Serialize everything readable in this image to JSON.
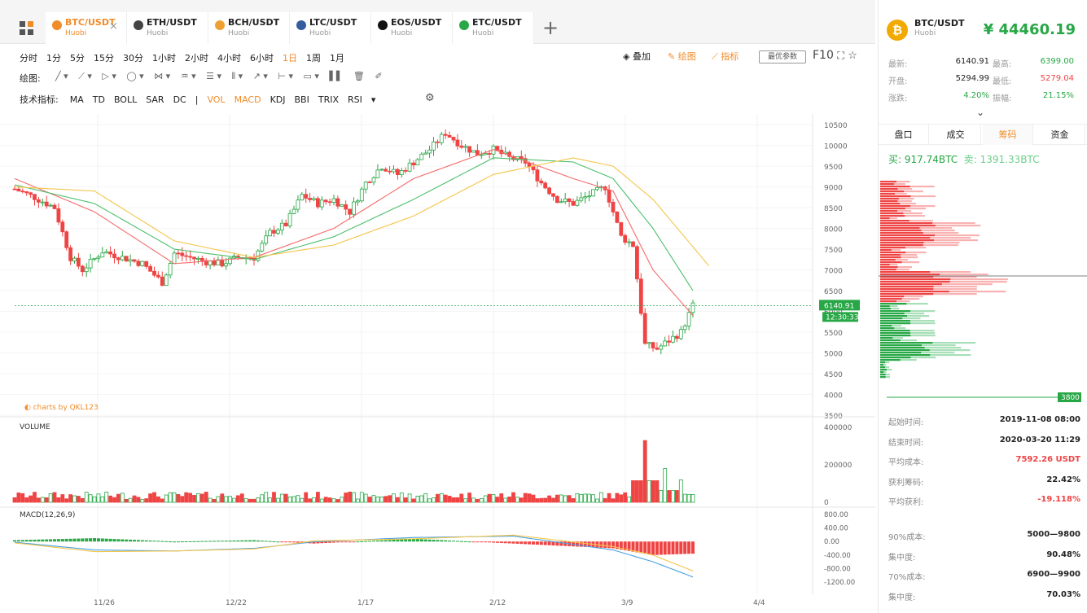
{
  "tabs": [
    {
      "symbol": "BTC/USDT",
      "exchange": "Huobi",
      "active": true,
      "color": "#f08c2a",
      "icon": "bitcoin-icon"
    },
    {
      "symbol": "ETH/USDT",
      "exchange": "Huobi",
      "active": false,
      "color": "#444444",
      "icon": "ethereum-icon"
    },
    {
      "symbol": "BCH/USDT",
      "exchange": "Huobi",
      "active": false,
      "color": "#f0a030",
      "icon": "bitcoin-cash-icon"
    },
    {
      "symbol": "LTC/USDT",
      "exchange": "Huobi",
      "active": false,
      "color": "#345d9d",
      "icon": "litecoin-icon"
    },
    {
      "symbol": "EOS/USDT",
      "exchange": "Huobi",
      "active": false,
      "color": "#111111",
      "icon": "eos-icon"
    },
    {
      "symbol": "ETC/USDT",
      "exchange": "Huobi",
      "active": false,
      "color": "#27a745",
      "icon": "ethereum-classic-icon"
    }
  ],
  "timeframes": [
    "分时",
    "1分",
    "5分",
    "15分",
    "30分",
    "1小时",
    "2小时",
    "4小时",
    "6小时",
    "1日",
    "1周",
    "1月"
  ],
  "active_timeframe": "1日",
  "toolbar_right": {
    "overlay": "叠加",
    "draw": "绘图",
    "indicator": "指标",
    "param": "最优参数",
    "f10": "F10"
  },
  "draw_label": "绘图:",
  "indicator_label": "技术指标:",
  "indicators_main": [
    "MA",
    "TD",
    "BOLL",
    "SAR",
    "DC"
  ],
  "separator": "|",
  "indicators_sub": [
    "VOL",
    "MACD",
    "KDJ",
    "BBI",
    "TRIX",
    "RSI"
  ],
  "indicators_highlighted": [
    "VOL",
    "MACD"
  ],
  "watermark": "charts by QKL123",
  "volume_label": "VOLUME",
  "macd_label": "MACD(12,26,9)",
  "chart_data": {
    "type": "candlestick",
    "price_axis": [
      "10500",
      "10000",
      "9500",
      "9000",
      "8500",
      "8000",
      "7500",
      "7000",
      "6500",
      "6000",
      "5500",
      "5000",
      "4500",
      "4000",
      "3500"
    ],
    "volume_axis": [
      "400000",
      "200000",
      "0"
    ],
    "macd_axis": [
      "800.00",
      "400.00",
      "0.00",
      "-400.00",
      "-800.00",
      "-1200.00"
    ],
    "x_ticks": [
      "11/26",
      "12/22",
      "1/17",
      "2/12",
      "3/9",
      "4/4"
    ],
    "last_price": "6140.91",
    "countdown": "12:30:33",
    "ylim": [
      3500,
      10600
    ],
    "price_key_points": [
      [
        0,
        8950
      ],
      [
        5,
        8750
      ],
      [
        10,
        8500
      ],
      [
        14,
        7300
      ],
      [
        17,
        7000
      ],
      [
        22,
        7450
      ],
      [
        27,
        7300
      ],
      [
        32,
        7150
      ],
      [
        37,
        6700
      ],
      [
        40,
        7400
      ],
      [
        44,
        7300
      ],
      [
        48,
        7200
      ],
      [
        52,
        7150
      ],
      [
        56,
        7300
      ],
      [
        60,
        7300
      ],
      [
        64,
        7900
      ],
      [
        68,
        8100
      ],
      [
        72,
        8800
      ],
      [
        76,
        8600
      ],
      [
        80,
        8700
      ],
      [
        84,
        8400
      ],
      [
        88,
        9100
      ],
      [
        92,
        9500
      ],
      [
        96,
        9300
      ],
      [
        100,
        9600
      ],
      [
        104,
        9900
      ],
      [
        108,
        10300
      ],
      [
        112,
        10000
      ],
      [
        116,
        9800
      ],
      [
        120,
        9900
      ],
      [
        124,
        9700
      ],
      [
        128,
        9600
      ],
      [
        132,
        9100
      ],
      [
        136,
        8700
      ],
      [
        140,
        8600
      ],
      [
        144,
        8800
      ],
      [
        148,
        9000
      ],
      [
        152,
        7800
      ],
      [
        155,
        7600
      ],
      [
        158,
        5200
      ],
      [
        161,
        5100
      ],
      [
        164,
        5300
      ],
      [
        167,
        5500
      ],
      [
        170,
        6140
      ]
    ],
    "ma_lines": [
      {
        "color": "#f46b6b",
        "points": [
          [
            0,
            9200
          ],
          [
            20,
            8400
          ],
          [
            40,
            7150
          ],
          [
            60,
            7300
          ],
          [
            80,
            8000
          ],
          [
            100,
            9200
          ],
          [
            120,
            9900
          ],
          [
            140,
            9200
          ],
          [
            150,
            8900
          ],
          [
            160,
            7000
          ],
          [
            170,
            5900
          ]
        ]
      },
      {
        "color": "#4cbf6c",
        "points": [
          [
            0,
            9050
          ],
          [
            20,
            8600
          ],
          [
            40,
            7500
          ],
          [
            60,
            7250
          ],
          [
            80,
            7800
          ],
          [
            100,
            8700
          ],
          [
            120,
            9700
          ],
          [
            140,
            9600
          ],
          [
            150,
            9200
          ],
          [
            160,
            8000
          ],
          [
            170,
            6500
          ]
        ]
      },
      {
        "color": "#f5c54a",
        "points": [
          [
            0,
            9000
          ],
          [
            20,
            8900
          ],
          [
            40,
            7700
          ],
          [
            60,
            7300
          ],
          [
            80,
            7600
          ],
          [
            100,
            8300
          ],
          [
            120,
            9300
          ],
          [
            140,
            9700
          ],
          [
            150,
            9500
          ],
          [
            160,
            8700
          ],
          [
            174,
            7100
          ]
        ]
      }
    ],
    "volume_spikes": [
      [
        158,
        330000
      ],
      [
        163,
        180000
      ],
      [
        167,
        120000
      ]
    ],
    "macd_dif_points": [
      [
        0,
        -20
      ],
      [
        20,
        -250
      ],
      [
        40,
        -280
      ],
      [
        60,
        -200
      ],
      [
        75,
        -10
      ],
      [
        100,
        120
      ],
      [
        125,
        160
      ],
      [
        150,
        -250
      ],
      [
        160,
        -600
      ],
      [
        170,
        -1050
      ]
    ],
    "macd_dea_points": [
      [
        0,
        -40
      ],
      [
        20,
        -300
      ],
      [
        40,
        -280
      ],
      [
        60,
        -220
      ],
      [
        75,
        20
      ],
      [
        100,
        80
      ],
      [
        125,
        190
      ],
      [
        150,
        -150
      ],
      [
        160,
        -400
      ],
      [
        170,
        -870
      ]
    ]
  },
  "panel": {
    "symbol": "BTC/USDT",
    "exchange": "Huobi",
    "price": "¥ 44460.19",
    "stats": [
      {
        "label": "最新:",
        "value": "6140.91",
        "label2": "最高:",
        "value2": "6399.00",
        "color2": "#27a745"
      },
      {
        "label": "开盘:",
        "value": "5294.99",
        "label2": "最低:",
        "value2": "5279.04",
        "color2": "#ef4444"
      },
      {
        "label": "涨跌:",
        "value": "4.20%",
        "label2": "振幅:",
        "value2": "21.15%",
        "color": "#27a745",
        "color2": "#27a745"
      }
    ],
    "tabs": [
      "盘口",
      "成交",
      "筹码",
      "资金"
    ],
    "active_tab": "筹码",
    "buy": "买: 917.74BTC",
    "sell": "卖: 1391.33BTC",
    "depth_label": "3800",
    "info1": [
      {
        "label": "起始时间:",
        "value": "2019-11-08 08:00",
        "color": "#222222"
      },
      {
        "label": "结束时间:",
        "value": "2020-03-20 11:29",
        "color": "#222222"
      },
      {
        "label": "平均成本:",
        "value": "7592.26 USDT",
        "color": "#ef4444"
      },
      {
        "label": "获利筹码:",
        "value": "22.42%",
        "color": "#222222"
      },
      {
        "label": "平均获利:",
        "value": "-19.118%",
        "color": "#ef4444"
      }
    ],
    "info2": [
      {
        "label": "90%成本:",
        "value": "5000—9800"
      },
      {
        "label": "集中度:",
        "value": "90.48%"
      },
      {
        "label": "70%成本:",
        "value": "6900—9900"
      },
      {
        "label": "集中度:",
        "value": "70.03%"
      }
    ]
  }
}
